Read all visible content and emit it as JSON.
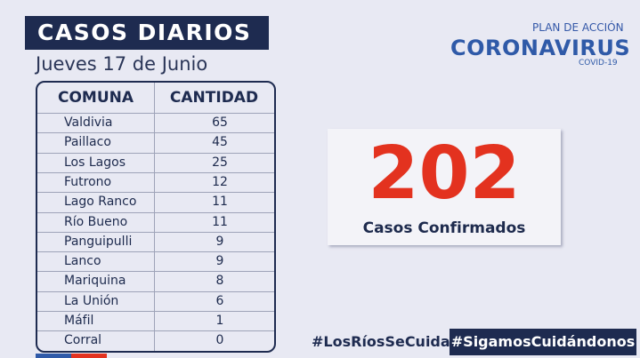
{
  "header": {
    "title": "CASOS DIARIOS",
    "date": "Jueves 17 de Junio"
  },
  "logo": {
    "top": "PLAN DE ACCIÓN",
    "main": "CORONAVIRUS",
    "sub": "COVID-19"
  },
  "table": {
    "columns": [
      "COMUNA",
      "CANTIDAD"
    ],
    "rows": [
      [
        "Valdivia",
        65
      ],
      [
        "Paillaco",
        45
      ],
      [
        "Los Lagos",
        25
      ],
      [
        "Futrono",
        12
      ],
      [
        "Lago Ranco",
        11
      ],
      [
        "Río Bueno",
        11
      ],
      [
        "Panguipulli",
        9
      ],
      [
        "Lanco",
        9
      ],
      [
        "Mariquina",
        8
      ],
      [
        "La Unión",
        6
      ],
      [
        "Máfil",
        1
      ],
      [
        "Corral",
        0
      ]
    ]
  },
  "total": {
    "value": 202,
    "label": "Casos Confirmados"
  },
  "hashtags": [
    "#LosRíosSeCuida",
    "#SigamosCuidándonos"
  ]
}
